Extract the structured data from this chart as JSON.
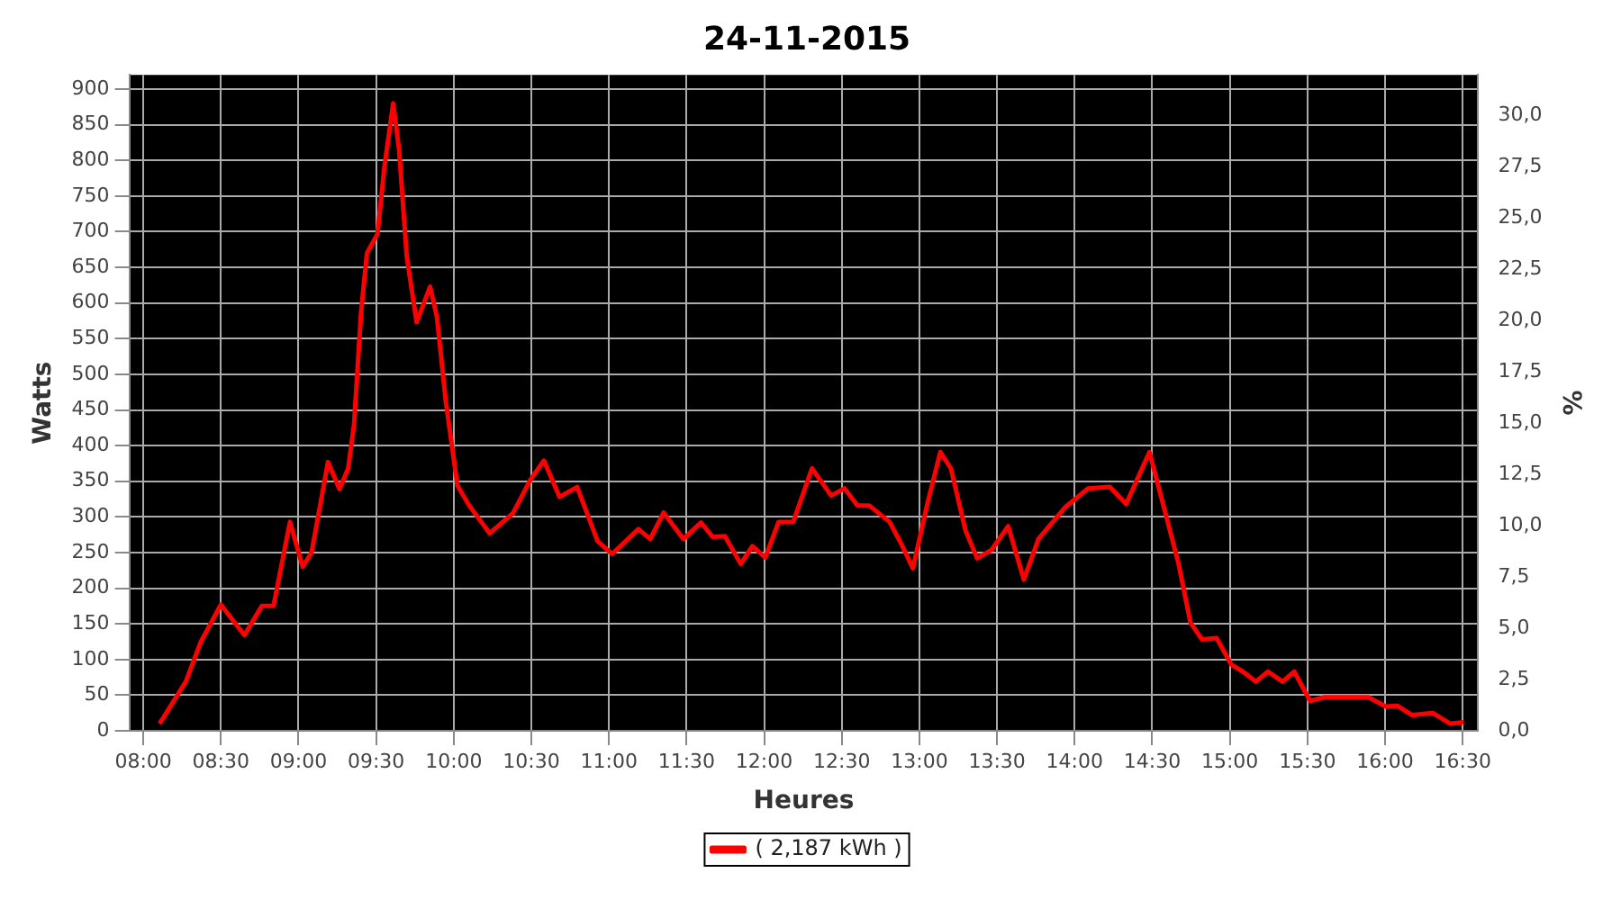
{
  "chart_data": {
    "type": "line",
    "title": "24-11-2015",
    "xlabel": "Heures",
    "ylabel": "Watts",
    "y2label": "%",
    "xlim": [
      7.91,
      16.6
    ],
    "ylim": [
      0,
      920
    ],
    "y2lim": [
      0,
      32
    ],
    "xticks": [
      {
        "value": 8,
        "label": "08:00"
      },
      {
        "value": 8.5,
        "label": "08:30"
      },
      {
        "value": 9,
        "label": "09:00"
      },
      {
        "value": 9.5,
        "label": "09:30"
      },
      {
        "value": 10,
        "label": "10:00"
      },
      {
        "value": 10.5,
        "label": "10:30"
      },
      {
        "value": 11,
        "label": "11:00"
      },
      {
        "value": 11.5,
        "label": "11:30"
      },
      {
        "value": 12,
        "label": "12:00"
      },
      {
        "value": 12.5,
        "label": "12:30"
      },
      {
        "value": 13,
        "label": "13:00"
      },
      {
        "value": 13.5,
        "label": "13:30"
      },
      {
        "value": 14,
        "label": "14:00"
      },
      {
        "value": 14.5,
        "label": "14:30"
      },
      {
        "value": 15,
        "label": "15:00"
      },
      {
        "value": 15.5,
        "label": "15:30"
      },
      {
        "value": 16,
        "label": "16:00"
      },
      {
        "value": 16.5,
        "label": "16:30"
      }
    ],
    "yticks": [
      0,
      50,
      100,
      150,
      200,
      250,
      300,
      350,
      400,
      450,
      500,
      550,
      600,
      650,
      700,
      750,
      800,
      850,
      900
    ],
    "y2ticks": [
      {
        "value": 0,
        "label": "0,0"
      },
      {
        "value": 2.5,
        "label": "2,5"
      },
      {
        "value": 5,
        "label": "5,0"
      },
      {
        "value": 7.5,
        "label": "7,5"
      },
      {
        "value": 10,
        "label": "10,0"
      },
      {
        "value": 12.5,
        "label": "12,5"
      },
      {
        "value": 15,
        "label": "15,0"
      },
      {
        "value": 17.5,
        "label": "17,5"
      },
      {
        "value": 20,
        "label": "20,0"
      },
      {
        "value": 22.5,
        "label": "22,5"
      },
      {
        "value": 25,
        "label": "25,0"
      },
      {
        "value": 27.5,
        "label": "27,5"
      },
      {
        "value": 30,
        "label": "30,0"
      }
    ],
    "grid": true,
    "legend": "bottom",
    "marker": "none",
    "line_style": "solid",
    "series": [
      {
        "name": "( 2,187 kWh )",
        "color": "#ff0000",
        "x": [
          8.105,
          8.274,
          8.369,
          8.5,
          8.651,
          8.764,
          8.839,
          8.945,
          9.027,
          9.084,
          9.19,
          9.264,
          9.32,
          9.358,
          9.403,
          9.441,
          9.509,
          9.554,
          9.61,
          9.648,
          9.697,
          9.761,
          9.848,
          9.892,
          9.949,
          10.024,
          10.1,
          10.137,
          10.231,
          10.381,
          10.494,
          10.581,
          10.682,
          10.795,
          10.927,
          11.021,
          11.19,
          11.266,
          11.352,
          11.48,
          11.593,
          11.668,
          11.747,
          11.849,
          11.924,
          12.007,
          12.093,
          12.187,
          12.308,
          12.432,
          12.518,
          12.601,
          12.676,
          12.808,
          12.884,
          12.958,
          13.053,
          13.135,
          13.203,
          13.297,
          13.372,
          13.466,
          13.572,
          13.673,
          13.767,
          13.937,
          14.087,
          14.227,
          14.332,
          14.482,
          14.595,
          14.67,
          14.746,
          14.821,
          14.915,
          15.009,
          15.084,
          15.167,
          15.246,
          15.34,
          15.415,
          15.517,
          15.611,
          15.893,
          16.006,
          16.081,
          16.175,
          16.307,
          16.42,
          16.507
        ],
        "values": [
          10,
          69,
          124,
          177,
          134,
          175,
          175,
          293,
          230,
          250,
          377,
          339,
          368,
          430,
          587,
          670,
          697,
          792,
          880,
          815,
          666,
          573,
          623,
          580,
          462,
          344,
          316,
          305,
          277,
          305,
          352,
          379,
          328,
          342,
          266,
          248,
          283,
          269,
          306,
          269,
          292,
          272,
          273,
          234,
          259,
          243,
          293,
          293,
          368,
          330,
          340,
          316,
          316,
          293,
          262,
          228,
          320,
          391,
          368,
          281,
          242,
          254,
          287,
          212,
          269,
          313,
          340,
          342,
          318,
          391,
          297,
          234,
          152,
          128,
          130,
          93,
          83,
          69,
          83,
          69,
          83,
          42,
          47,
          47,
          34,
          35,
          22,
          25,
          10,
          12
        ]
      }
    ]
  }
}
